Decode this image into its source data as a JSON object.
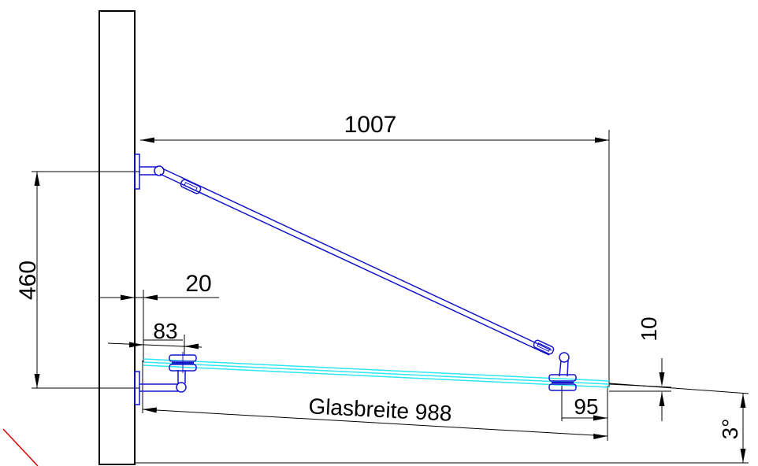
{
  "labels": {
    "width_top": "1007",
    "height_left": "460",
    "wall_gap": "20",
    "holder_offset": "83",
    "glass_width": "Glasbreite 988",
    "end_offset": "95",
    "drop": "10",
    "angle": "3°"
  },
  "colors": {
    "outline": "#000000",
    "hardware": "#1414c8",
    "glass": "#2ee6f0",
    "accent_line": "#e00000"
  }
}
